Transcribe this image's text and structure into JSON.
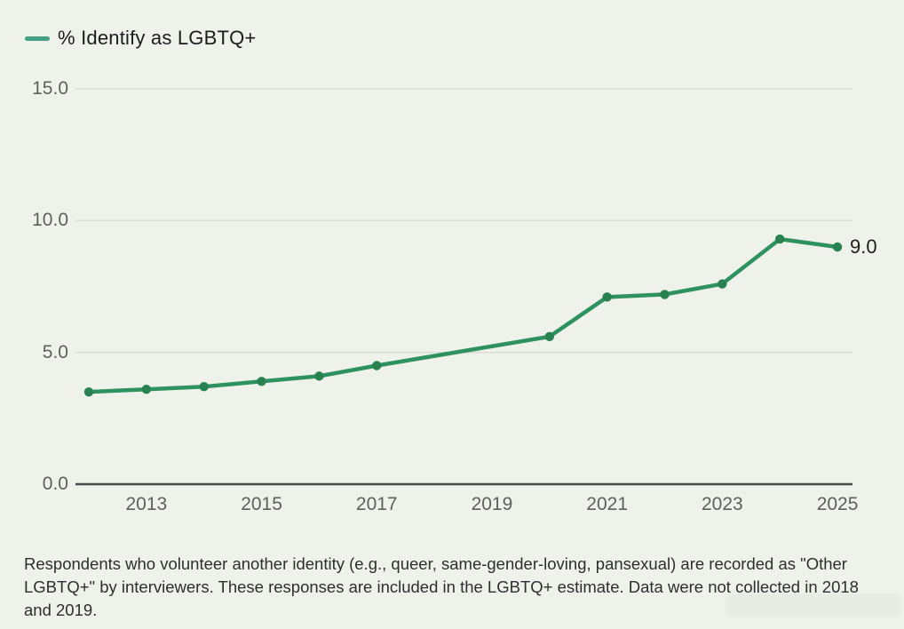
{
  "page": {
    "background_color": "#eef2eb"
  },
  "legend": {
    "label": "% Identify as LGBTQ+",
    "swatch_color": "#43a182"
  },
  "chart_data": {
    "type": "line",
    "title": "",
    "legend": [
      "% Identify as LGBTQ+"
    ],
    "x": [
      2012,
      2013,
      2014,
      2015,
      2016,
      2017,
      2020,
      2021,
      2022,
      2023,
      2024,
      2025
    ],
    "series": [
      {
        "name": "% Identify as LGBTQ+",
        "values": [
          3.5,
          3.6,
          3.7,
          3.9,
          4.1,
          4.5,
          5.6,
          7.1,
          7.2,
          7.6,
          9.3,
          9.0
        ]
      }
    ],
    "missing_years": [
      2018,
      2019
    ],
    "x_tick_years": [
      2013,
      2015,
      2017,
      2019,
      2021,
      2023,
      2025
    ],
    "x_tick_labels": [
      "2013",
      "2015",
      "2017",
      "2019",
      "2021",
      "2023",
      "2025"
    ],
    "y_tick_values": [
      0,
      5,
      10,
      15
    ],
    "y_tick_labels": [
      "0.0",
      "5.0",
      "10.0",
      "15.0"
    ],
    "xlim": [
      2012,
      2025
    ],
    "ylim": [
      0,
      15
    ],
    "end_point_label": "9.0",
    "grid": true,
    "legend_position": "top-left",
    "line_color": "#2e9160",
    "marker_color": "#28824f",
    "grid_color": "#d9ded6",
    "axis_line_color": "#474948",
    "tick_label_color": "#5d615c"
  },
  "footnote": {
    "text": "Respondents who volunteer another identity (e.g., queer, same-gender-loving, pansexual) are recorded as \"Other LGBTQ+\" by interviewers. These responses are included in the LGBTQ+ estimate. Data were not collected in 2018 and 2019."
  }
}
